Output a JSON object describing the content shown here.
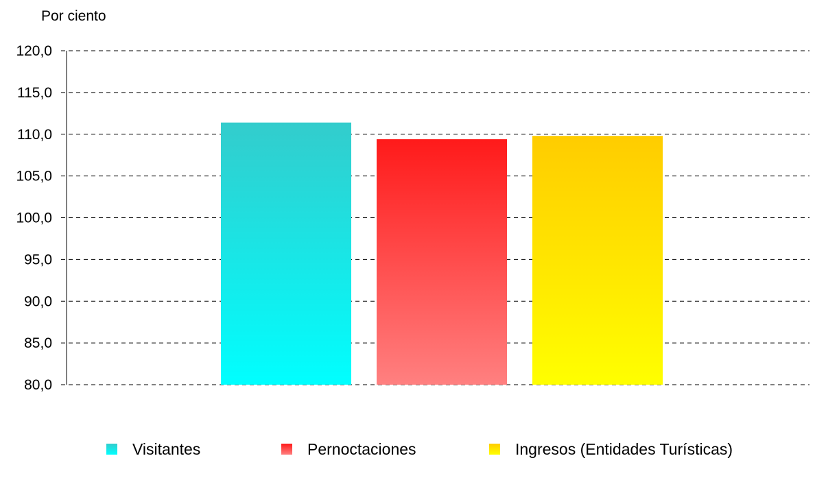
{
  "chart_data": {
    "type": "bar",
    "title": "",
    "ylabel": "Por ciento",
    "xlabel": "",
    "ylim": [
      80,
      120
    ],
    "yticks": [
      "80,0",
      "85,0",
      "90,0",
      "95,0",
      "100,0",
      "105,0",
      "110,0",
      "115,0",
      "120,0"
    ],
    "grid": true,
    "legend_position": "bottom",
    "series": [
      {
        "name": "Visitantes",
        "value": 111.4,
        "color_top": "#33cccc",
        "color_bottom": "#00ffff"
      },
      {
        "name": "Pernoctaciones",
        "value": 109.4,
        "color_top": "#ff1a1a",
        "color_bottom": "#ff8080"
      },
      {
        "name": "Ingresos (Entidades Turísticas)",
        "value": 109.8,
        "color_top": "#ffcc00",
        "color_bottom": "#ffff00"
      }
    ]
  }
}
